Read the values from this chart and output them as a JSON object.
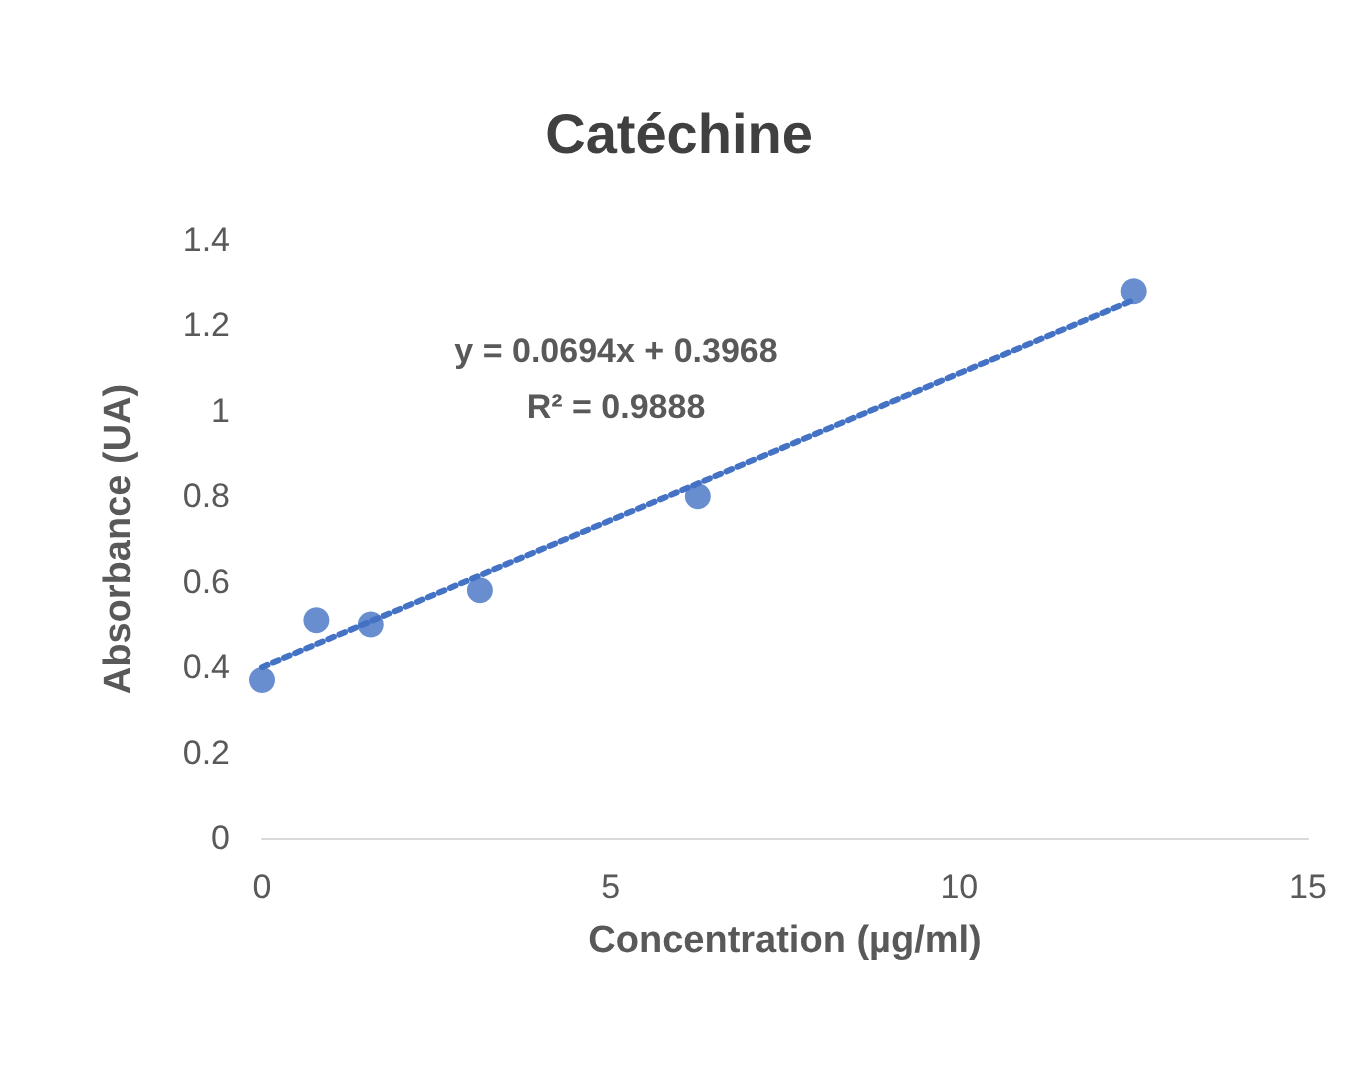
{
  "chart_data": {
    "type": "scatter",
    "title": "Catéchine",
    "xlabel": "Concentration (µg/ml)",
    "ylabel": "Absorbance (UA)",
    "series": [
      {
        "type": "scatter",
        "color": "#4472c4",
        "marker": "circle",
        "x": [
          0,
          0.78,
          1.56,
          3.125,
          6.25,
          12.5
        ],
        "values": [
          0.37,
          0.51,
          0.5,
          0.58,
          0.8,
          1.28
        ]
      },
      {
        "type": "line",
        "color": "#4472c4",
        "marker": "none",
        "line_style": "dotted",
        "x": [
          0,
          12.5
        ],
        "values": [
          0.4,
          1.26
        ]
      }
    ],
    "annotations": [
      "y = 0.0694x + 0.3968",
      "R² = 0.9888"
    ],
    "xlim": [
      0,
      15
    ],
    "xticks": [
      0,
      5,
      10,
      15
    ],
    "ylim": [
      0,
      1.4
    ],
    "yticks": [
      0,
      0.2,
      0.4,
      0.6,
      0.8,
      1,
      1.2,
      1.4
    ],
    "grid": false
  }
}
